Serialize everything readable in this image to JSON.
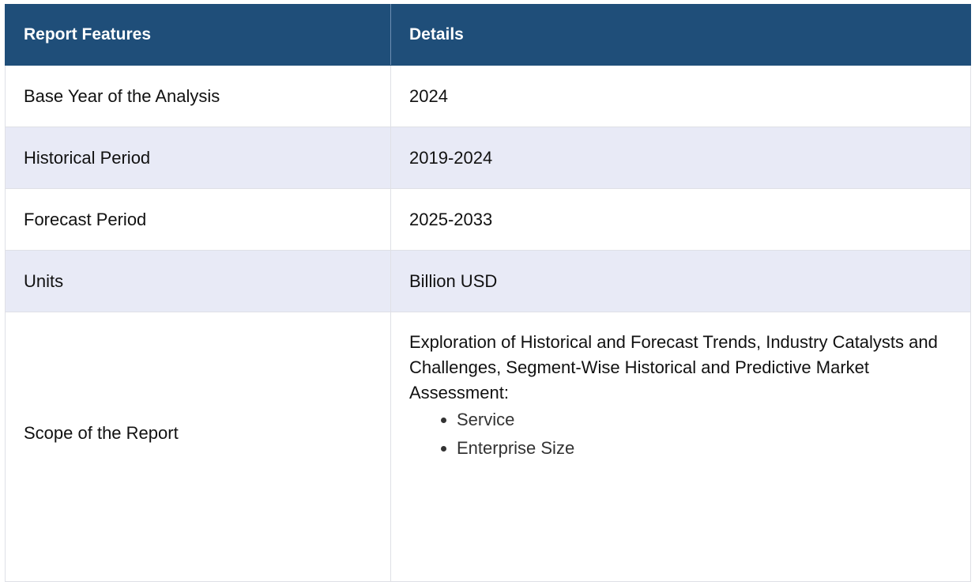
{
  "table": {
    "headers": [
      "Report Features",
      "Details"
    ],
    "rows": [
      {
        "feature": "Base Year of the Analysis",
        "detail": "2024"
      },
      {
        "feature": "Historical Period",
        "detail": "2019-2024"
      },
      {
        "feature": "Forecast Period",
        "detail": "2025-2033"
      },
      {
        "feature": "Units",
        "detail": "Billion USD"
      }
    ],
    "scope": {
      "feature": "Scope of the Report",
      "detail": "Exploration of Historical and Forecast Trends, Industry Catalysts and Challenges, Segment-Wise Historical and Predictive Market Assessment:",
      "items": [
        "Service",
        "Enterprise Size"
      ]
    }
  },
  "colors": {
    "header_bg": "#1f4e79",
    "header_text": "#ffffff",
    "alt_row_bg": "#e8eaf6",
    "border": "#dfe0e6"
  }
}
